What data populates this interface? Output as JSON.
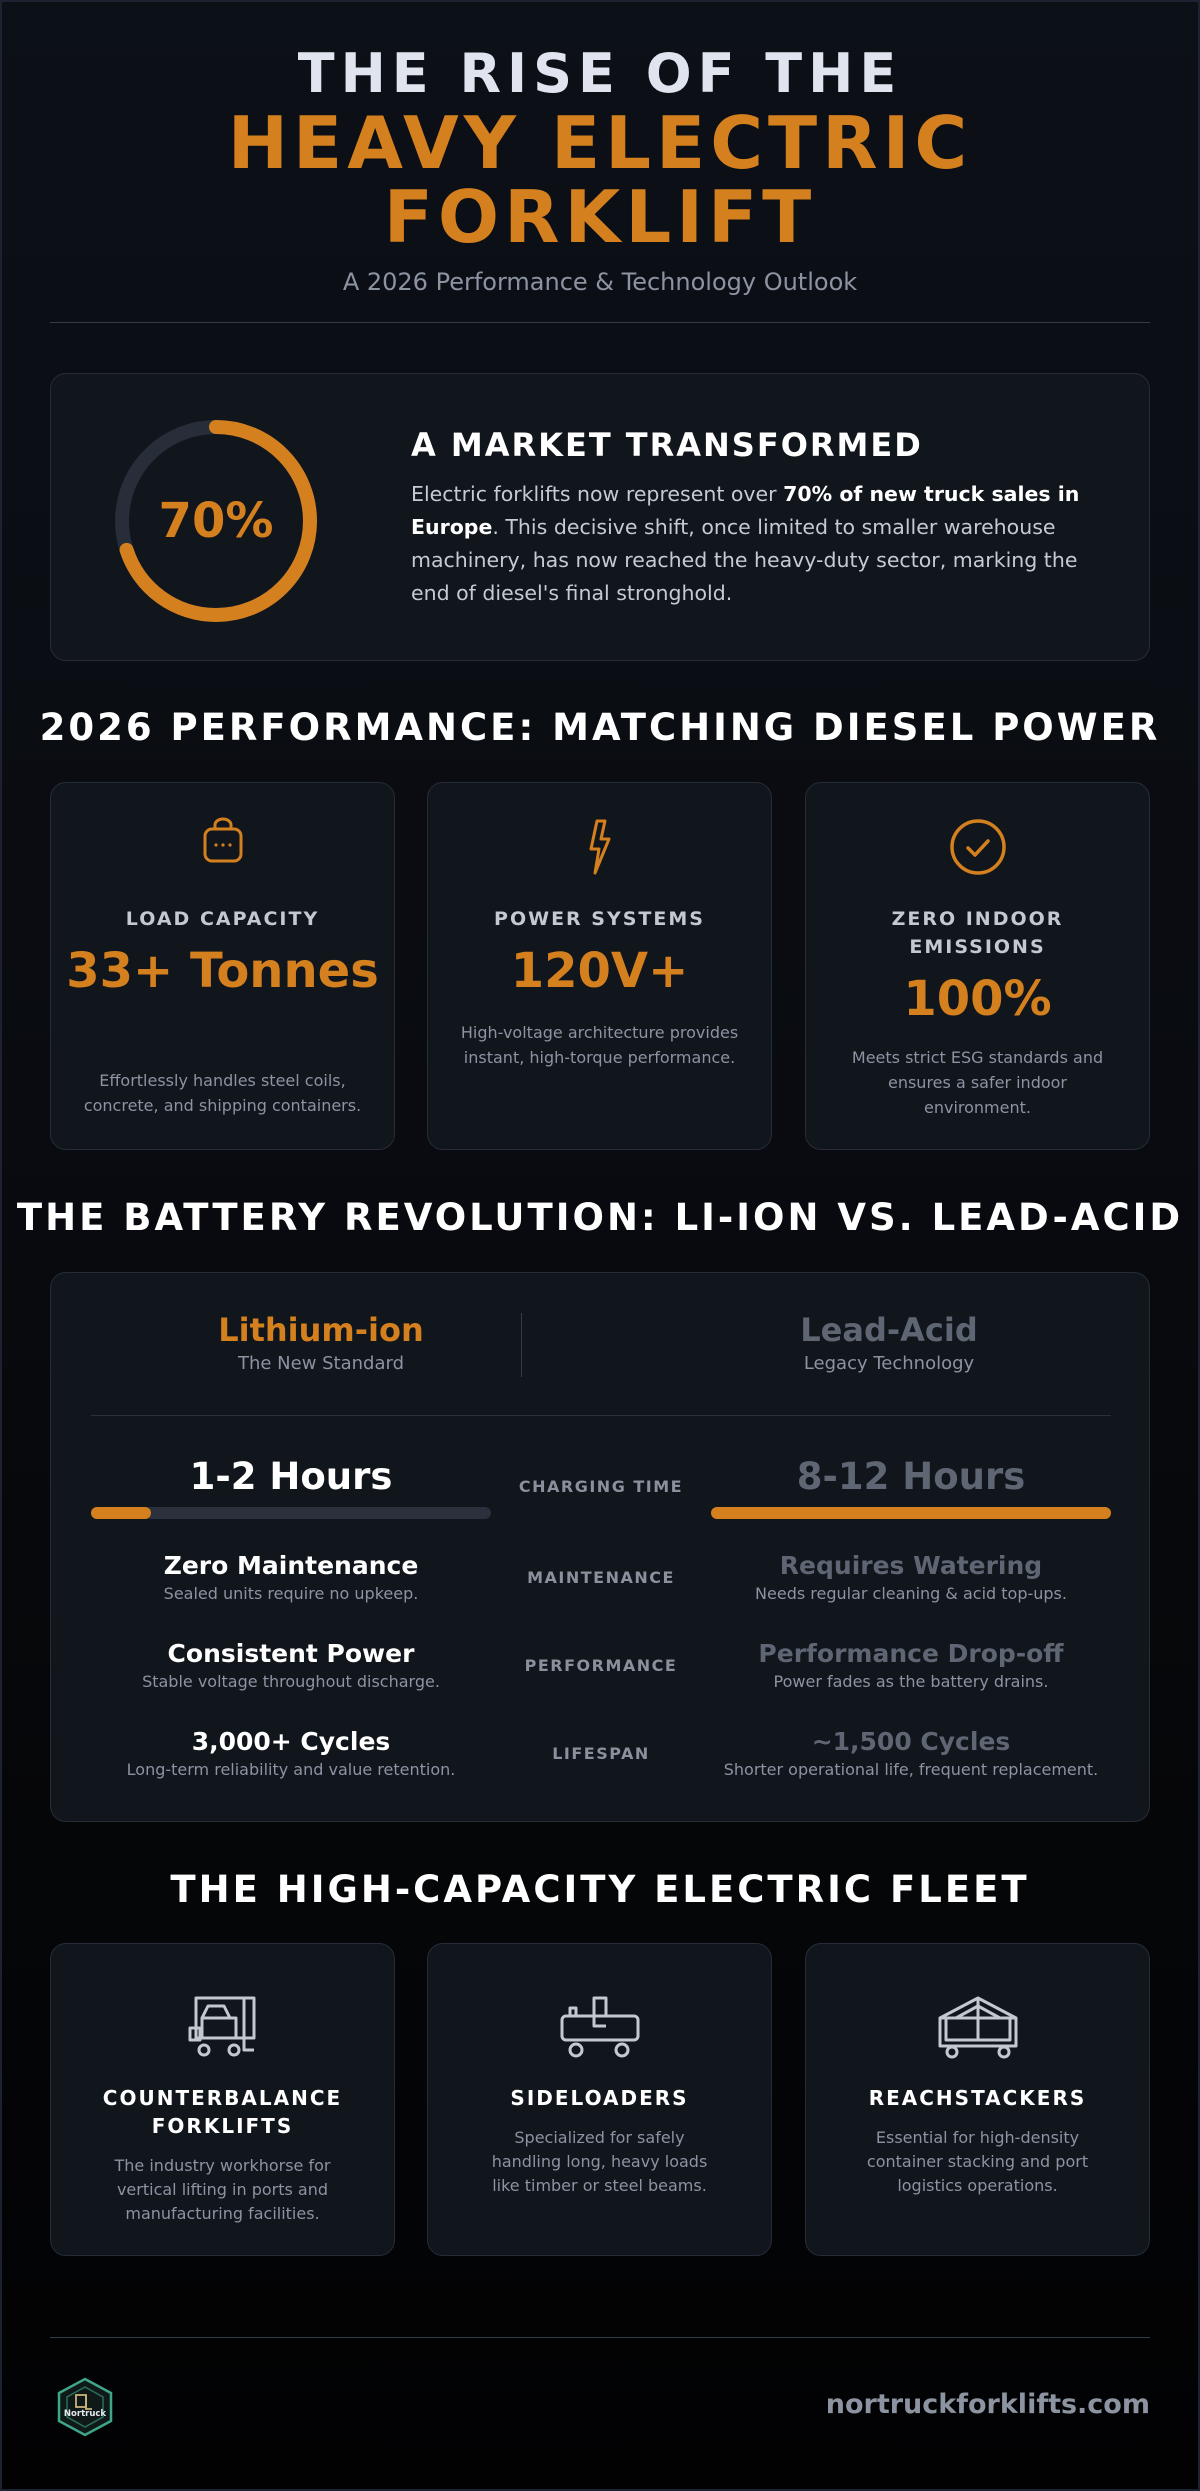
{
  "header": {
    "line1": "THE RISE OF THE",
    "line2": "HEAVY ELECTRIC",
    "line3": "FORKLIFT",
    "subtitle": "A 2026 Performance & Technology Outlook"
  },
  "market": {
    "percent_label": "70%",
    "percent_value": 70,
    "title": "A MARKET TRANSFORMED",
    "text_before": "Electric forklifts now represent over ",
    "text_bold": "70% of new truck sales in Europe",
    "text_after": ". This decisive shift, once limited to smaller warehouse machinery, has now reached the heavy-duty sector, marking the end of diesel's final stronghold."
  },
  "performance": {
    "title": "2026 PERFORMANCE: MATCHING DIESEL POWER",
    "cards": [
      {
        "icon": "weight-icon",
        "label": "LOAD CAPACITY",
        "value": "33+ Tonnes",
        "desc": "Effortlessly handles steel coils, concrete, and shipping containers."
      },
      {
        "icon": "lightning-icon",
        "label": "POWER SYSTEMS",
        "value": "120V+",
        "desc": "High-voltage architecture provides instant, high-torque performance."
      },
      {
        "icon": "check-circle-icon",
        "label": "ZERO INDOOR EMISSIONS",
        "value": "100%",
        "desc": "Meets strict ESG standards and ensures a safer indoor environment."
      }
    ]
  },
  "battery": {
    "title": "THE BATTERY REVOLUTION: LI-ION VS. LEAD-ACID",
    "left": {
      "name": "Lithium-ion",
      "tag": "The New Standard"
    },
    "right": {
      "name": "Lead-Acid",
      "tag": "Legacy Technology"
    },
    "charging": {
      "label": "CHARGING TIME",
      "left": "1-2 Hours",
      "right": "8-12 Hours",
      "left_fraction": 0.15,
      "right_fraction": 1.0
    },
    "rows": [
      {
        "label": "MAINTENANCE",
        "left_title": "Zero Maintenance",
        "left_sub": "Sealed units require no upkeep.",
        "right_title": "Requires Watering",
        "right_sub": "Needs regular cleaning & acid top-ups."
      },
      {
        "label": "PERFORMANCE",
        "left_title": "Consistent Power",
        "left_sub": "Stable voltage throughout discharge.",
        "right_title": "Performance Drop-off",
        "right_sub": "Power fades as the battery drains."
      },
      {
        "label": "LIFESPAN",
        "left_title": "3,000+ Cycles",
        "left_sub": "Long-term reliability and value retention.",
        "right_title": "~1,500 Cycles",
        "right_sub": "Shorter operational life, frequent replacement."
      }
    ]
  },
  "fleet": {
    "title": "THE HIGH-CAPACITY ELECTRIC FLEET",
    "cards": [
      {
        "icon": "counterbalance-forklift-icon",
        "label": "COUNTERBALANCE FORKLIFTS",
        "desc": "The industry workhorse for vertical lifting in ports and manufacturing facilities."
      },
      {
        "icon": "sideloader-icon",
        "label": "SIDELOADERS",
        "desc": "Specialized for safely handling long, heavy loads like timber or steel beams."
      },
      {
        "icon": "reachstacker-icon",
        "label": "REACHSTACKERS",
        "desc": "Essential for high-density container stacking and port logistics operations."
      }
    ]
  },
  "footer": {
    "logo_text": "Nortruck",
    "site": "nortruckforklifts.com"
  },
  "colors": {
    "accent": "#d4801f",
    "background": "#0c1017",
    "card": "#11151c",
    "muted": "#8c93a1"
  }
}
